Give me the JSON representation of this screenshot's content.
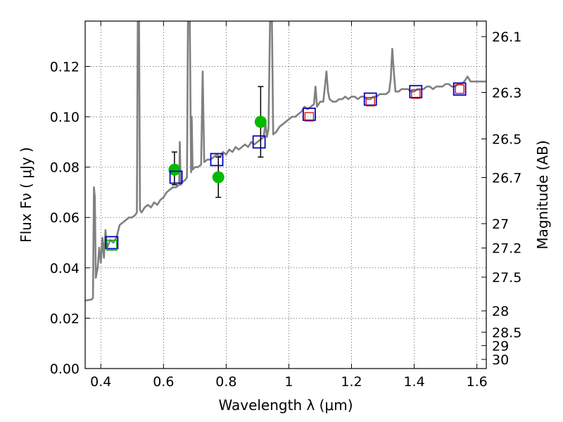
{
  "chart_data": {
    "type": "line",
    "title": "",
    "xlabel": "Wavelength  λ (μm)",
    "ylabel": "Flux  Fν  ( μJy )",
    "y2label": "Magnitude (AB)",
    "xlim": [
      0.35,
      1.63
    ],
    "ylim": [
      0.0,
      0.138
    ],
    "grid": true,
    "x_ticks": [
      {
        "value": 0.4,
        "label": "0.4"
      },
      {
        "value": 0.6,
        "label": "0.6"
      },
      {
        "value": 0.8,
        "label": "0.8"
      },
      {
        "value": 1.0,
        "label": "1"
      },
      {
        "value": 1.2,
        "label": "1.2"
      },
      {
        "value": 1.4,
        "label": "1.4"
      },
      {
        "value": 1.6,
        "label": "1.6"
      }
    ],
    "y_ticks": [
      {
        "value": 0.0,
        "label": "0.00"
      },
      {
        "value": 0.02,
        "label": "0.02"
      },
      {
        "value": 0.04,
        "label": "0.04"
      },
      {
        "value": 0.06,
        "label": "0.06"
      },
      {
        "value": 0.08,
        "label": "0.08"
      },
      {
        "value": 0.1,
        "label": "0.10"
      },
      {
        "value": 0.12,
        "label": "0.12"
      }
    ],
    "y2_ticks": [
      {
        "value": 26.1,
        "label": "26.1"
      },
      {
        "value": 26.3,
        "label": "26.3"
      },
      {
        "value": 26.5,
        "label": "26.5"
      },
      {
        "value": 26.7,
        "label": "26.7"
      },
      {
        "value": 27.0,
        "label": "27"
      },
      {
        "value": 27.2,
        "label": "27.2"
      },
      {
        "value": 27.5,
        "label": "27.5"
      },
      {
        "value": 28.0,
        "label": "28"
      },
      {
        "value": 28.5,
        "label": "28.5"
      },
      {
        "value": 29.0,
        "label": "29"
      },
      {
        "value": 30.0,
        "label": "30"
      }
    ],
    "colors": {
      "model": "#808080",
      "green_fill": "#00bb00",
      "blue_square": "#0000cc",
      "green_square": "#00aa00",
      "red_square": "#dd0000",
      "errorbar": "#000000"
    },
    "series": [
      {
        "type": "line",
        "points": [
          [
            0.35,
            0.027
          ],
          [
            0.36,
            0.0272
          ],
          [
            0.37,
            0.0274
          ],
          [
            0.375,
            0.028
          ],
          [
            0.378,
            0.072
          ],
          [
            0.381,
            0.068
          ],
          [
            0.384,
            0.036
          ],
          [
            0.39,
            0.04
          ],
          [
            0.395,
            0.048
          ],
          [
            0.4,
            0.042
          ],
          [
            0.405,
            0.052
          ],
          [
            0.41,
            0.044
          ],
          [
            0.415,
            0.055
          ],
          [
            0.42,
            0.048
          ],
          [
            0.43,
            0.051
          ],
          [
            0.44,
            0.05
          ],
          [
            0.45,
            0.052
          ],
          [
            0.46,
            0.057
          ],
          [
            0.47,
            0.058
          ],
          [
            0.48,
            0.059
          ],
          [
            0.49,
            0.06
          ],
          [
            0.5,
            0.06
          ],
          [
            0.51,
            0.061
          ],
          [
            0.515,
            0.062
          ],
          [
            0.518,
            0.138
          ],
          [
            0.522,
            0.138
          ],
          [
            0.525,
            0.063
          ],
          [
            0.53,
            0.062
          ],
          [
            0.54,
            0.064
          ],
          [
            0.55,
            0.065
          ],
          [
            0.56,
            0.064
          ],
          [
            0.57,
            0.066
          ],
          [
            0.58,
            0.065
          ],
          [
            0.59,
            0.067
          ],
          [
            0.6,
            0.068
          ],
          [
            0.61,
            0.07
          ],
          [
            0.62,
            0.071
          ],
          [
            0.63,
            0.072
          ],
          [
            0.64,
            0.072
          ],
          [
            0.65,
            0.073
          ],
          [
            0.652,
            0.09
          ],
          [
            0.655,
            0.073
          ],
          [
            0.66,
            0.074
          ],
          [
            0.67,
            0.075
          ],
          [
            0.675,
            0.076
          ],
          [
            0.678,
            0.138
          ],
          [
            0.684,
            0.138
          ],
          [
            0.688,
            0.078
          ],
          [
            0.69,
            0.1
          ],
          [
            0.693,
            0.079
          ],
          [
            0.7,
            0.08
          ],
          [
            0.71,
            0.08
          ],
          [
            0.72,
            0.081
          ],
          [
            0.725,
            0.118
          ],
          [
            0.73,
            0.082
          ],
          [
            0.74,
            0.083
          ],
          [
            0.75,
            0.083
          ],
          [
            0.76,
            0.084
          ],
          [
            0.77,
            0.085
          ],
          [
            0.78,
            0.084
          ],
          [
            0.79,
            0.086
          ],
          [
            0.8,
            0.085
          ],
          [
            0.81,
            0.087
          ],
          [
            0.82,
            0.086
          ],
          [
            0.83,
            0.088
          ],
          [
            0.84,
            0.087
          ],
          [
            0.85,
            0.088
          ],
          [
            0.86,
            0.089
          ],
          [
            0.87,
            0.088
          ],
          [
            0.88,
            0.09
          ],
          [
            0.89,
            0.089
          ],
          [
            0.9,
            0.09
          ],
          [
            0.91,
            0.091
          ],
          [
            0.92,
            0.092
          ],
          [
            0.925,
            0.098
          ],
          [
            0.93,
            0.092
          ],
          [
            0.935,
            0.095
          ],
          [
            0.94,
            0.138
          ],
          [
            0.946,
            0.138
          ],
          [
            0.95,
            0.093
          ],
          [
            0.96,
            0.094
          ],
          [
            0.97,
            0.096
          ],
          [
            0.98,
            0.097
          ],
          [
            0.99,
            0.098
          ],
          [
            1.0,
            0.099
          ],
          [
            1.01,
            0.1
          ],
          [
            1.02,
            0.1
          ],
          [
            1.03,
            0.101
          ],
          [
            1.04,
            0.102
          ],
          [
            1.05,
            0.104
          ],
          [
            1.06,
            0.103
          ],
          [
            1.07,
            0.104
          ],
          [
            1.08,
            0.105
          ],
          [
            1.085,
            0.112
          ],
          [
            1.09,
            0.104
          ],
          [
            1.1,
            0.106
          ],
          [
            1.11,
            0.106
          ],
          [
            1.115,
            0.112
          ],
          [
            1.12,
            0.118
          ],
          [
            1.125,
            0.11
          ],
          [
            1.13,
            0.107
          ],
          [
            1.14,
            0.106
          ],
          [
            1.15,
            0.106
          ],
          [
            1.16,
            0.107
          ],
          [
            1.17,
            0.107
          ],
          [
            1.18,
            0.108
          ],
          [
            1.19,
            0.107
          ],
          [
            1.2,
            0.108
          ],
          [
            1.21,
            0.108
          ],
          [
            1.22,
            0.107
          ],
          [
            1.23,
            0.108
          ],
          [
            1.24,
            0.108
          ],
          [
            1.25,
            0.107
          ],
          [
            1.26,
            0.107
          ],
          [
            1.27,
            0.108
          ],
          [
            1.28,
            0.108
          ],
          [
            1.29,
            0.109
          ],
          [
            1.3,
            0.109
          ],
          [
            1.31,
            0.109
          ],
          [
            1.32,
            0.11
          ],
          [
            1.325,
            0.115
          ],
          [
            1.33,
            0.127
          ],
          [
            1.335,
            0.118
          ],
          [
            1.34,
            0.11
          ],
          [
            1.35,
            0.11
          ],
          [
            1.36,
            0.111
          ],
          [
            1.37,
            0.111
          ],
          [
            1.38,
            0.111
          ],
          [
            1.39,
            0.11
          ],
          [
            1.4,
            0.11
          ],
          [
            1.41,
            0.111
          ],
          [
            1.42,
            0.111
          ],
          [
            1.43,
            0.111
          ],
          [
            1.44,
            0.112
          ],
          [
            1.45,
            0.112
          ],
          [
            1.46,
            0.111
          ],
          [
            1.47,
            0.112
          ],
          [
            1.48,
            0.112
          ],
          [
            1.49,
            0.112
          ],
          [
            1.5,
            0.113
          ],
          [
            1.51,
            0.113
          ],
          [
            1.52,
            0.112
          ],
          [
            1.53,
            0.112
          ],
          [
            1.54,
            0.113
          ],
          [
            1.55,
            0.113
          ],
          [
            1.56,
            0.114
          ],
          [
            1.565,
            0.115
          ],
          [
            1.57,
            0.116
          ],
          [
            1.575,
            0.115
          ],
          [
            1.58,
            0.114
          ],
          [
            1.59,
            0.114
          ],
          [
            1.6,
            0.114
          ],
          [
            1.61,
            0.114
          ],
          [
            1.62,
            0.114
          ],
          [
            1.63,
            0.114
          ]
        ]
      },
      {
        "type": "scatter",
        "marker": "filled-circle",
        "points": [
          {
            "x": 0.635,
            "y": 0.079,
            "yerr_low": 0.073,
            "yerr_high": 0.086
          },
          {
            "x": 0.775,
            "y": 0.076,
            "yerr_low": 0.068,
            "yerr_high": 0.084
          },
          {
            "x": 0.91,
            "y": 0.098,
            "yerr_low": 0.084,
            "yerr_high": 0.112
          }
        ]
      },
      {
        "type": "scatter",
        "marker": "open-square-blue",
        "points": [
          {
            "x": 0.435,
            "y": 0.05
          },
          {
            "x": 0.64,
            "y": 0.076
          },
          {
            "x": 0.77,
            "y": 0.083
          },
          {
            "x": 0.905,
            "y": 0.09
          },
          {
            "x": 1.065,
            "y": 0.101
          },
          {
            "x": 1.26,
            "y": 0.107
          },
          {
            "x": 1.405,
            "y": 0.11
          },
          {
            "x": 1.545,
            "y": 0.111
          }
        ]
      },
      {
        "type": "scatter",
        "marker": "open-square-green",
        "points": [
          {
            "x": 0.435,
            "y": 0.049
          }
        ]
      },
      {
        "type": "scatter",
        "marker": "open-square-red",
        "points": [
          {
            "x": 1.065,
            "y": 0.1
          },
          {
            "x": 1.26,
            "y": 0.106
          },
          {
            "x": 1.405,
            "y": 0.109
          },
          {
            "x": 1.545,
            "y": 0.111
          }
        ]
      }
    ]
  }
}
